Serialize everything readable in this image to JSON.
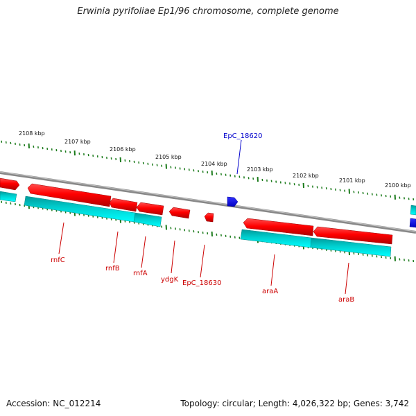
{
  "title": "Erwinia pyrifoliae Ep1/96 chromosome, complete genome",
  "footer": {
    "accession": "Accession: NC_012214",
    "stats": "Topology: circular; Length: 4,026,322 bp; Genes: 3,742"
  },
  "colors": {
    "forward_gene": "#ff0000",
    "forward_gene_shadow": "#b00000",
    "reverse_gene": "#00e5e5",
    "reverse_gene_shadow": "#009a9a",
    "highlight_gene": "#0000ff",
    "backbone": "#888888",
    "scale_ticks": "#1a7a1a",
    "label_red": "#cc0000",
    "label_blue": "#0000cc"
  },
  "scale_labels": [
    "2108 kbp",
    "2107 kbp",
    "2106 kbp",
    "2105 kbp",
    "2104 kbp",
    "2103 kbp",
    "2102 kbp",
    "2101 kbp",
    "2100 kbp"
  ],
  "gene_labels": [
    {
      "text": "EpC_18620",
      "color": "blue"
    },
    {
      "text": "rnfC",
      "color": "red"
    },
    {
      "text": "rnfB",
      "color": "red"
    },
    {
      "text": "rnfA",
      "color": "red"
    },
    {
      "text": "ydgK",
      "color": "red"
    },
    {
      "text": "EpC_18630",
      "color": "red"
    },
    {
      "text": "araA",
      "color": "red"
    },
    {
      "text": "araB",
      "color": "red"
    }
  ]
}
